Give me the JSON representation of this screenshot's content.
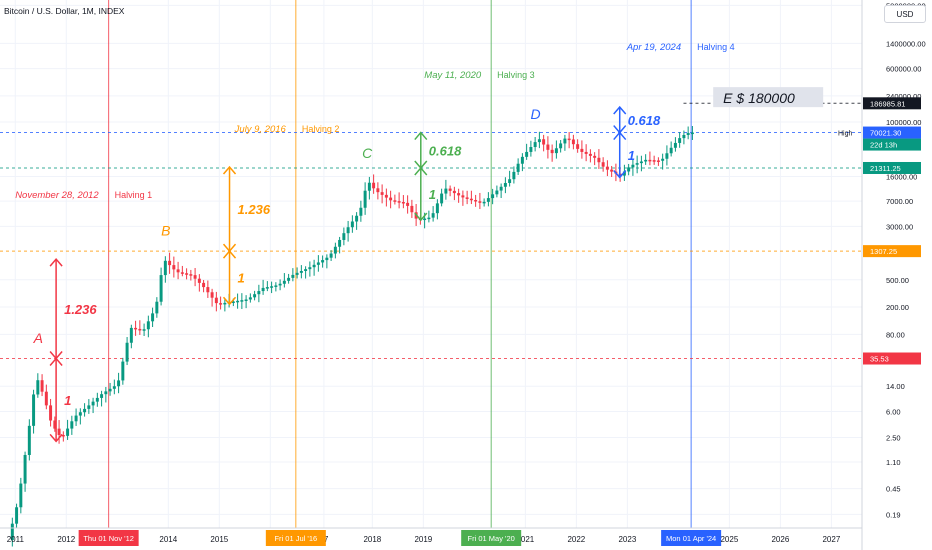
{
  "header": {
    "title": "Bitcoin / U.S. Dollar, 1M, INDEX",
    "currency_button": "USD"
  },
  "chart_data": {
    "type": "candlestick",
    "title": "Bitcoin / U.S. Dollar, 1M, INDEX",
    "y_scale": "log",
    "ylim": [
      0.12,
      6000000
    ],
    "xlim": [
      2010.7,
      2027.6
    ],
    "y_ticks": [
      "0.19",
      "0.45",
      "1.10",
      "2.50",
      "6.00",
      "14.00",
      "80.00",
      "200.00",
      "500.00",
      "3000.00",
      "7000.00",
      "16000.00",
      "100000.00",
      "240000.00",
      "600000.00",
      "1400000.00",
      "5000000.00"
    ],
    "x_ticks": [
      "2011",
      "2012",
      "2014",
      "2015",
      "20",
      "17",
      "2018",
      "2019",
      "2021",
      "2022",
      "2023",
      "2025",
      "2026",
      "2027"
    ],
    "price_path": [
      [
        2010.9,
        0.08
      ],
      [
        2011.1,
        0.3
      ],
      [
        2011.3,
        3
      ],
      [
        2011.45,
        20
      ],
      [
        2011.6,
        10
      ],
      [
        2011.75,
        4
      ],
      [
        2011.95,
        2.4
      ],
      [
        2012.2,
        5
      ],
      [
        2012.45,
        7
      ],
      [
        2012.75,
        11
      ],
      [
        2013.05,
        15
      ],
      [
        2013.3,
        100
      ],
      [
        2013.55,
        90
      ],
      [
        2013.8,
        200
      ],
      [
        2013.95,
        1000
      ],
      [
        2014.2,
        650
      ],
      [
        2014.5,
        580
      ],
      [
        2014.75,
        380
      ],
      [
        2015.0,
        220
      ],
      [
        2015.3,
        240
      ],
      [
        2015.6,
        260
      ],
      [
        2015.9,
        380
      ],
      [
        2016.2,
        420
      ],
      [
        2016.5,
        600
      ],
      [
        2016.8,
        750
      ],
      [
        2017.2,
        1100
      ],
      [
        2017.5,
        2500
      ],
      [
        2017.8,
        5000
      ],
      [
        2017.95,
        14000
      ],
      [
        2018.1,
        10000
      ],
      [
        2018.4,
        7200
      ],
      [
        2018.7,
        6500
      ],
      [
        2018.92,
        3700
      ],
      [
        2019.2,
        4100
      ],
      [
        2019.45,
        11000
      ],
      [
        2019.8,
        8000
      ],
      [
        2020.2,
        6500
      ],
      [
        2020.45,
        9500
      ],
      [
        2020.75,
        15000
      ],
      [
        2020.95,
        29000
      ],
      [
        2021.3,
        58000
      ],
      [
        2021.55,
        34000
      ],
      [
        2021.85,
        61000
      ],
      [
        2022.1,
        38000
      ],
      [
        2022.4,
        30000
      ],
      [
        2022.6,
        21000
      ],
      [
        2022.9,
        16500
      ],
      [
        2023.1,
        23000
      ],
      [
        2023.4,
        28000
      ],
      [
        2023.7,
        27000
      ],
      [
        2023.9,
        42000
      ],
      [
        2024.1,
        62000
      ],
      [
        2024.25,
        70000
      ]
    ],
    "horizontal_levels": [
      {
        "label": "35.53",
        "value": 35.53,
        "color": "#f23645"
      },
      {
        "label": "1307.25",
        "value": 1307.25,
        "color": "#ff9800"
      },
      {
        "label": "21311.25",
        "value": 21311.25,
        "color": "#089981"
      },
      {
        "label": "70021.30",
        "sub": "22d 13h",
        "value": 70021.3,
        "color": "#2962ff",
        "tag": "High"
      },
      {
        "label": "186985.81",
        "value": 186985.81,
        "color": "#131722"
      }
    ],
    "halvings": [
      {
        "date_text": "November 28, 2012",
        "name": "Halving 1",
        "tick": "Thu 01 Nov '12",
        "x": 2012.83,
        "color": "#f23645"
      },
      {
        "date_text": "July 9, 2016",
        "name": "Halving 2",
        "tick": "Fri 01 Jul '16",
        "x": 2016.5,
        "color": "#ff9800"
      },
      {
        "date_text": "May 11, 2020",
        "name": "Halving 3",
        "tick": "Fri 01 May '20",
        "x": 2020.33,
        "color": "#4caf50"
      },
      {
        "date_text": "Apr 19, 2024",
        "name": "Halving 4",
        "tick": "Mon 01 Apr '24",
        "x": 2024.25,
        "color": "#2962ff"
      }
    ],
    "wave_labels": [
      {
        "text": "A",
        "x": 2011.45,
        "y": 60,
        "color": "#f23645"
      },
      {
        "text": "B",
        "x": 2013.95,
        "y": 2200,
        "color": "#ff9800"
      },
      {
        "text": "C",
        "x": 2017.9,
        "y": 30000,
        "color": "#4caf50"
      },
      {
        "text": "D",
        "x": 2021.2,
        "y": 110000,
        "color": "#2962ff"
      },
      {
        "text": "E  $ 180000",
        "x": 2024.8,
        "y": 230000,
        "color": "#131722"
      }
    ],
    "fib_arrows": [
      {
        "x": 2011.8,
        "from": 2.2,
        "to": 35.53,
        "label": "1",
        "color": "#f23645"
      },
      {
        "x": 2011.8,
        "from": 35.53,
        "to": 1000,
        "label": "1.236",
        "color": "#f23645"
      },
      {
        "x": 2015.2,
        "from": 220,
        "to": 1307.25,
        "label": "1",
        "color": "#ff9800"
      },
      {
        "x": 2015.2,
        "from": 1307.25,
        "to": 22000,
        "label": "1.236",
        "color": "#ff9800"
      },
      {
        "x": 2018.95,
        "from": 3700,
        "to": 21311.25,
        "label": "1",
        "color": "#4caf50"
      },
      {
        "x": 2018.95,
        "from": 21311.25,
        "to": 70000,
        "label": "0.618",
        "color": "#4caf50"
      },
      {
        "x": 2022.85,
        "from": 15500,
        "to": 70021.3,
        "label": "1",
        "color": "#2962ff"
      },
      {
        "x": 2022.85,
        "from": 70021.3,
        "to": 165000,
        "label": "0.618",
        "color": "#2962ff"
      }
    ]
  },
  "colors": {
    "up": "#089981",
    "down": "#f23645",
    "grid": "#f0f3fa",
    "axis_text": "#131722"
  }
}
